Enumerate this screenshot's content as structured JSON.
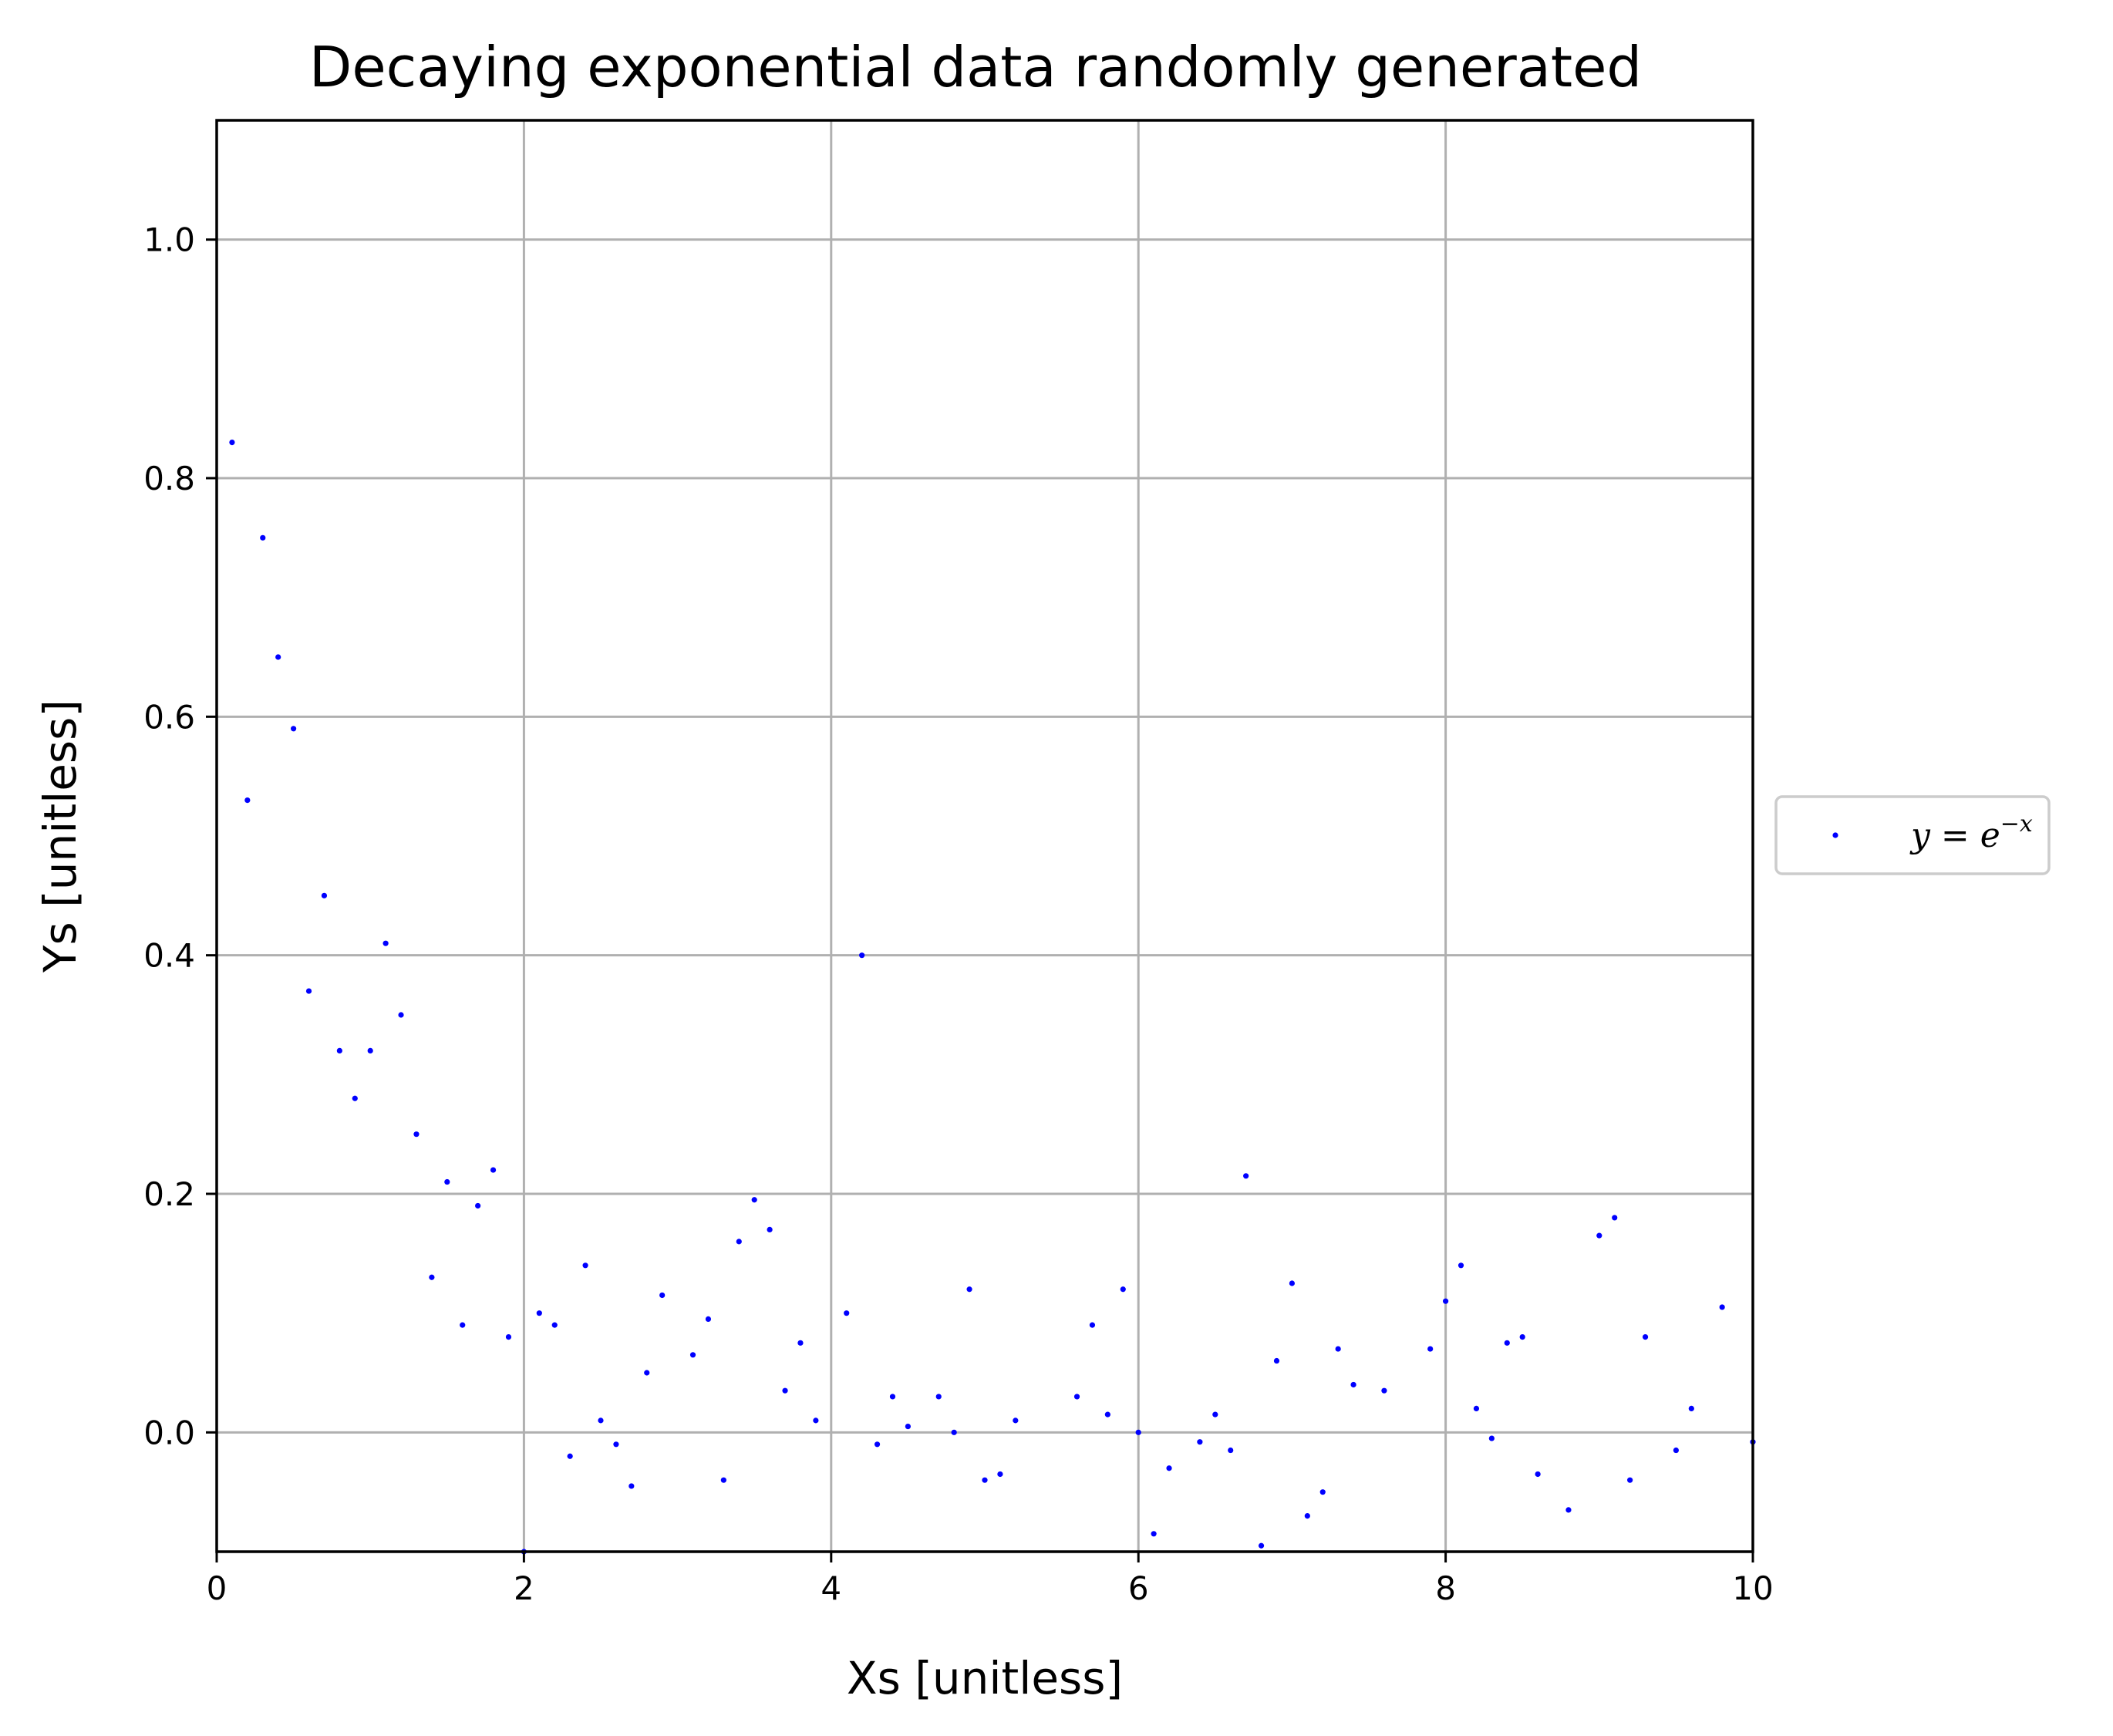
{
  "chart_data": {
    "type": "scatter",
    "title": "Decaying exponential data randomly generated",
    "xlabel": "Xs [unitless]",
    "ylabel": "Ys [unitless]",
    "xlim": [
      0,
      10
    ],
    "ylim": [
      -0.1,
      1.1
    ],
    "xticks": [
      0,
      2,
      4,
      6,
      8,
      10
    ],
    "xtick_labels": [
      "0",
      "2",
      "4",
      "6",
      "8",
      "10"
    ],
    "yticks": [
      0.0,
      0.2,
      0.4,
      0.6,
      0.8,
      1.0
    ],
    "ytick_labels": [
      "0.0",
      "0.2",
      "0.4",
      "0.6",
      "0.8",
      "1.0"
    ],
    "grid": true,
    "legend": {
      "placement": "outside-right",
      "label_base": "y = e",
      "label_sup": "−x"
    },
    "series": [
      {
        "name": "y = e^{-x}",
        "color": "#0000ff",
        "marker": "point",
        "x": [
          0.1,
          0.2,
          0.3,
          0.4,
          0.5,
          0.6,
          0.7,
          0.8,
          0.9,
          1.0,
          1.1,
          1.2,
          1.3,
          1.4,
          1.5,
          1.6,
          1.7,
          1.8,
          1.9,
          2.0,
          2.1,
          2.2,
          2.3,
          2.4,
          2.5,
          2.6,
          2.7,
          2.8,
          2.9,
          3.1,
          3.2,
          3.3,
          3.4,
          3.5,
          3.6,
          3.7,
          3.8,
          3.9,
          4.1,
          4.2,
          4.3,
          4.4,
          4.5,
          4.7,
          4.8,
          4.9,
          5.0,
          5.1,
          5.2,
          5.6,
          5.7,
          5.8,
          5.9,
          6.0,
          6.1,
          6.2,
          6.4,
          6.5,
          6.6,
          6.7,
          6.8,
          6.9,
          7.0,
          7.1,
          7.2,
          7.3,
          7.4,
          7.6,
          7.9,
          8.0,
          8.1,
          8.2,
          8.3,
          8.4,
          8.5,
          8.6,
          8.8,
          9.0,
          9.1,
          9.2,
          9.3,
          9.5,
          9.6,
          9.8,
          10.0
        ],
        "y": [
          0.83,
          0.53,
          0.75,
          0.65,
          0.59,
          0.37,
          0.45,
          0.32,
          0.28,
          0.32,
          0.41,
          0.35,
          0.25,
          0.13,
          0.21,
          0.09,
          0.19,
          0.22,
          0.08,
          -0.1,
          0.1,
          0.09,
          -0.02,
          0.14,
          0.01,
          -0.01,
          -0.045,
          0.05,
          0.115,
          0.065,
          0.095,
          -0.04,
          0.16,
          0.195,
          0.17,
          0.035,
          0.075,
          0.01,
          0.1,
          0.4,
          -0.01,
          0.03,
          0.005,
          0.03,
          0.0,
          0.12,
          -0.04,
          -0.035,
          0.01,
          0.03,
          0.09,
          0.015,
          0.12,
          0.0,
          -0.085,
          -0.03,
          -0.008,
          0.015,
          -0.015,
          0.215,
          -0.095,
          0.06,
          0.125,
          -0.07,
          -0.05,
          0.07,
          0.04,
          0.035,
          0.07,
          0.11,
          0.14,
          0.02,
          -0.005,
          0.075,
          0.08,
          -0.035,
          -0.065,
          0.165,
          0.18,
          -0.04,
          0.08,
          -0.015,
          0.02,
          0.105,
          -0.008
        ]
      }
    ]
  }
}
